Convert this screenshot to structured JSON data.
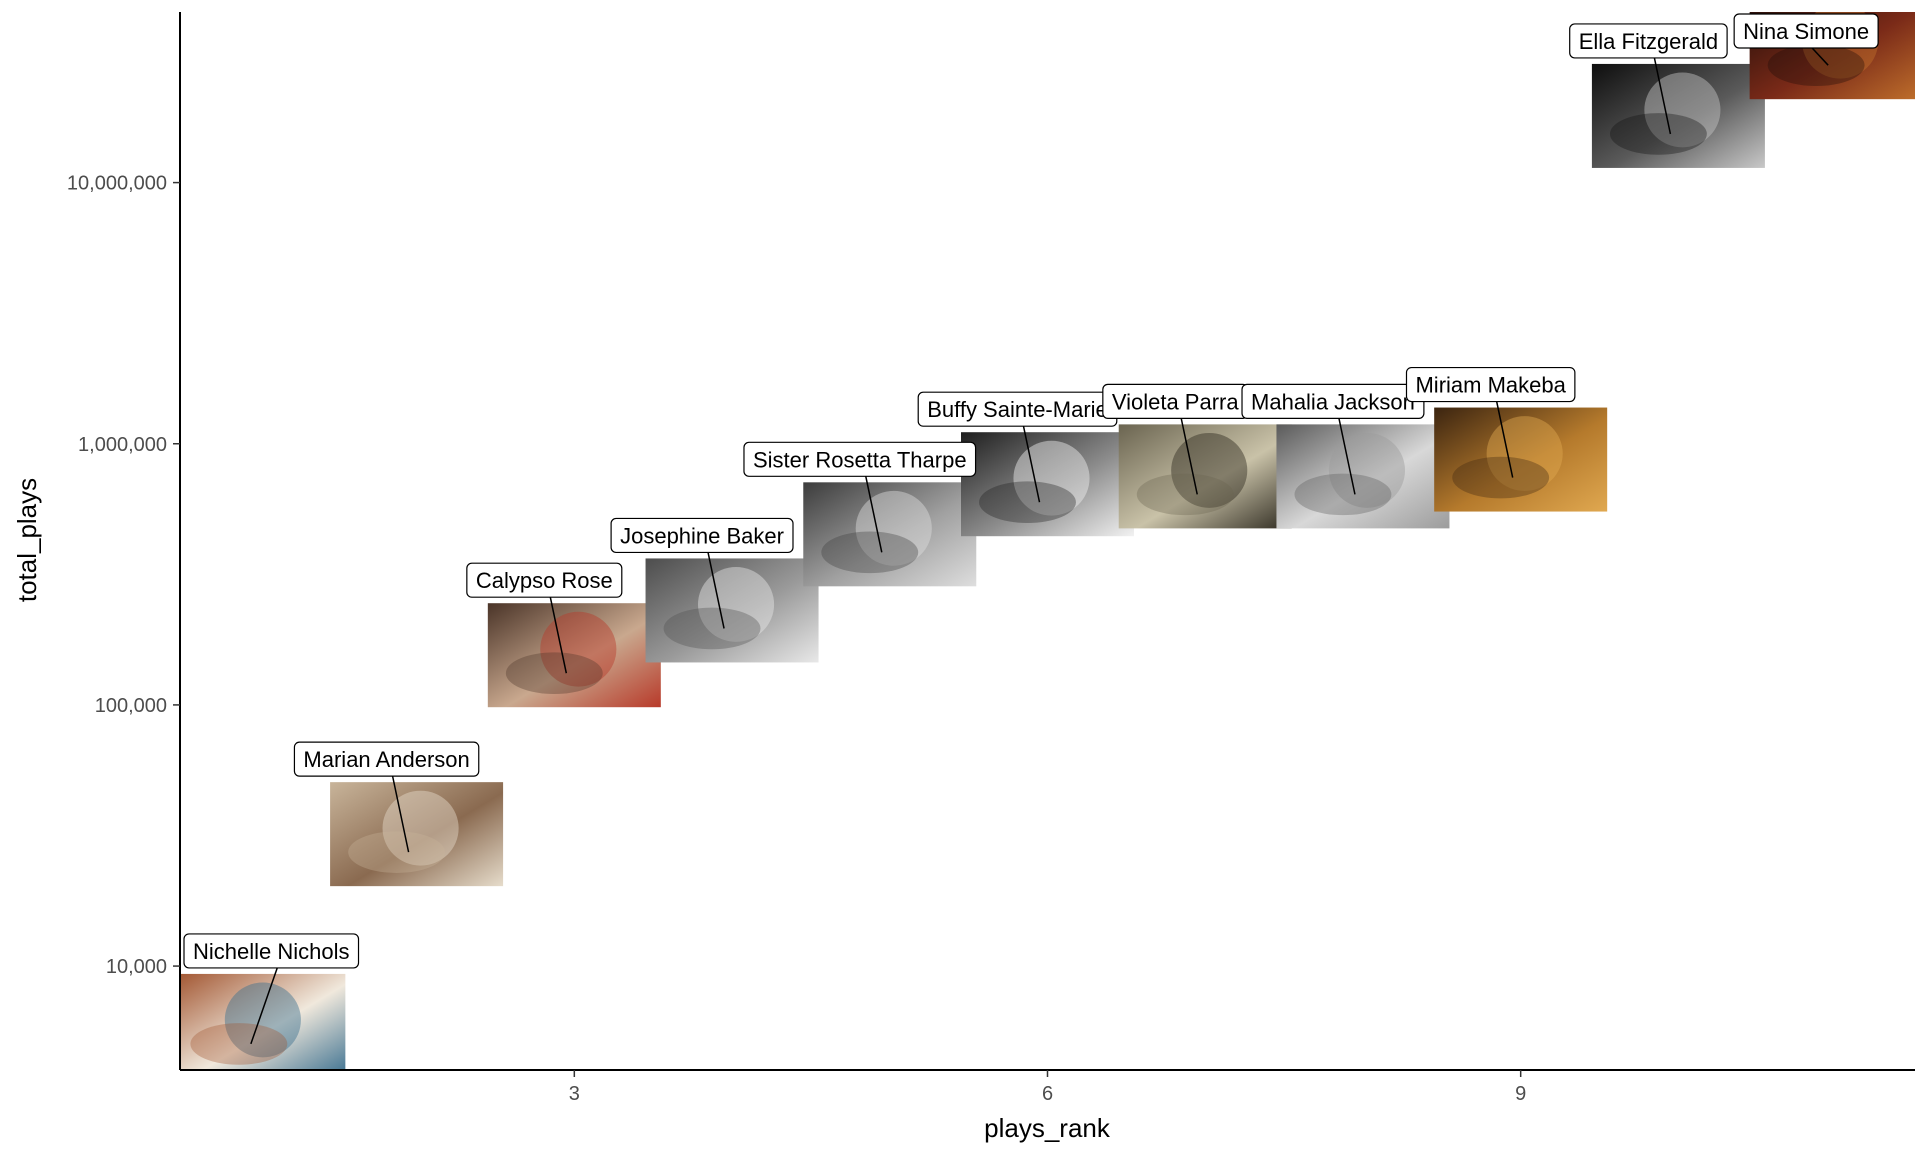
{
  "chart_data": {
    "type": "scatter",
    "title": "",
    "xlabel": "plays_rank",
    "ylabel": "total_plays",
    "xlim": [
      0.5,
      11.5
    ],
    "ylim": [
      4000,
      45000000
    ],
    "y_scale": "log10",
    "x_ticks": [
      3,
      6,
      9
    ],
    "x_tick_labels": [
      "3",
      "6",
      "9"
    ],
    "y_ticks": [
      10000,
      100000,
      1000000,
      10000000
    ],
    "y_tick_labels": [
      "10,000",
      "100,000",
      "1,000,000",
      "10,000,000"
    ],
    "grid": false,
    "legend": "none",
    "point_marker": "photo thumbnail",
    "label_style": "boxed label with leader line",
    "points": [
      {
        "x": 1,
        "y": 5900,
        "label": "Nichelle Nichols",
        "colors": [
          "#a0522d",
          "#f0e8dc",
          "#3a6f8f"
        ]
      },
      {
        "x": 2,
        "y": 32000,
        "label": "Marian Anderson",
        "colors": [
          "#c8b49a",
          "#8a6a50",
          "#e6dccb"
        ]
      },
      {
        "x": 3,
        "y": 155000,
        "label": "Calypso Rose",
        "colors": [
          "#4a3428",
          "#c9a88e",
          "#b83a2a"
        ]
      },
      {
        "x": 4,
        "y": 230000,
        "label": "Josephine Baker",
        "colors": [
          "#4d4d4d",
          "#9a9a9a",
          "#e8e8e8"
        ]
      },
      {
        "x": 5,
        "y": 450000,
        "label": "Sister Rosetta Tharpe",
        "colors": [
          "#3c3c3c",
          "#a0a0a0",
          "#dedede"
        ]
      },
      {
        "x": 6,
        "y": 700000,
        "label": "Buffy Sainte-Marie",
        "colors": [
          "#1e1e1e",
          "#8c8c8c",
          "#f2f2f2"
        ]
      },
      {
        "x": 7,
        "y": 750000,
        "label": "Violeta Parra",
        "colors": [
          "#6a6450",
          "#c9c2a8",
          "#2e2a20"
        ]
      },
      {
        "x": 8,
        "y": 750000,
        "label": "Mahalia Jackson",
        "colors": [
          "#5a5a5a",
          "#d8d8d8",
          "#9c9c9c"
        ]
      },
      {
        "x": 9,
        "y": 870000,
        "label": "Miriam Makeba",
        "colors": [
          "#3b2410",
          "#b57a2c",
          "#e0a850"
        ]
      },
      {
        "x": 10,
        "y": 18000000,
        "label": "Ella Fitzgerald",
        "colors": [
          "#0e0e0e",
          "#5a5a5a",
          "#c8c8c8"
        ]
      },
      {
        "x": 11,
        "y": 33000000,
        "label": "Nina Simone",
        "colors": [
          "#1e0c08",
          "#7a2a18",
          "#c0702c"
        ]
      }
    ]
  }
}
